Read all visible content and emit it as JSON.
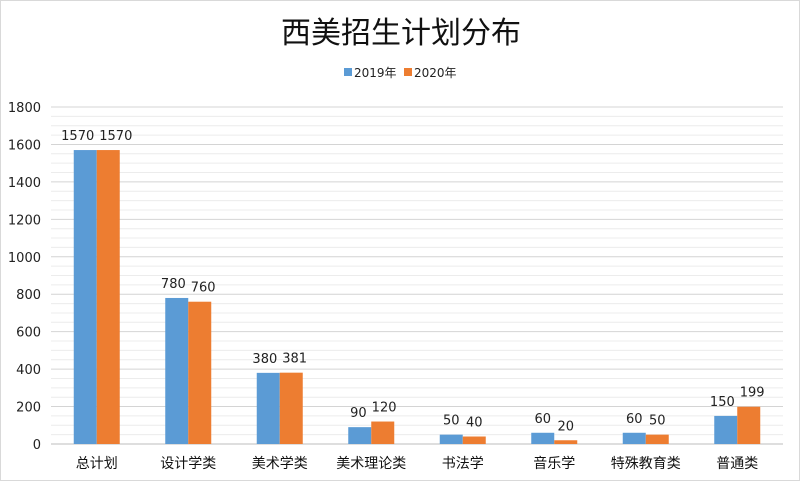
{
  "chart_data": {
    "type": "bar",
    "title": "西美招生计划分布",
    "xlabel": "",
    "ylabel": "",
    "ylim": [
      0,
      1800
    ],
    "yticks": [
      0,
      200,
      400,
      600,
      800,
      1000,
      1200,
      1400,
      1600,
      1800
    ],
    "grid": true,
    "legend_position": "top",
    "categories": [
      "总计划",
      "设计学类",
      "美术学类",
      "美术理论类",
      "书法学",
      "音乐学",
      "特殊教育类",
      "普通类"
    ],
    "series": [
      {
        "name": "2019年",
        "color": "#5b9bd5",
        "values": [
          1570,
          780,
          380,
          90,
          50,
          60,
          60,
          150
        ]
      },
      {
        "name": "2020年",
        "color": "#ed7d31",
        "values": [
          1570,
          760,
          381,
          120,
          40,
          20,
          50,
          199
        ]
      }
    ]
  }
}
